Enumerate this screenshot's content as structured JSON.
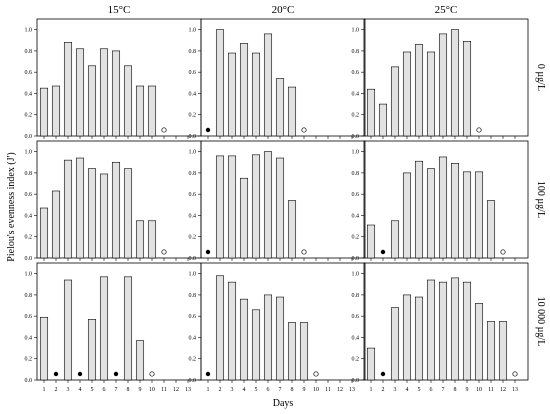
{
  "chart_data": {
    "type": "bar",
    "xlabel": "Days",
    "ylabel": "Pielou's evenness index (J')",
    "ylim": [
      0,
      1.1
    ],
    "yticks": [
      "0.0",
      "0.2",
      "0.4",
      "0.6",
      "0.8",
      "1.0"
    ],
    "xticks": [
      "1",
      "2",
      "3",
      "4",
      "5",
      "6",
      "7",
      "8",
      "9",
      "10",
      "11",
      "12",
      "13"
    ],
    "columns": [
      "15°C",
      "20°C",
      "25°C"
    ],
    "rows": [
      "0 µg/L",
      "100 µg/L",
      "10 000 µg/L"
    ],
    "colors": {
      "bar_fill": "#e2e2e2",
      "bar_edge": "#000000",
      "filled_dot": "#000000",
      "open_dot": "#ffffff"
    },
    "marker_legend": {
      "filled": "value of 0 (single taxon)",
      "open": "no data / end of experiment"
    },
    "panels": [
      {
        "column": "15°C",
        "row": "0 µg/L",
        "days": [
          1,
          2,
          3,
          4,
          5,
          6,
          7,
          8,
          9,
          10
        ],
        "values": [
          0.45,
          0.47,
          0.88,
          0.82,
          0.66,
          0.82,
          0.8,
          0.66,
          0.47,
          0.47
        ],
        "filled_markers": [],
        "open_markers": [
          11
        ]
      },
      {
        "column": "20°C",
        "row": "0 µg/L",
        "days": [
          2,
          3,
          4,
          5,
          6,
          7,
          8
        ],
        "values": [
          1.0,
          0.78,
          0.87,
          0.78,
          0.96,
          0.54,
          0.46
        ],
        "filled_markers": [
          1
        ],
        "open_markers": [
          9
        ]
      },
      {
        "column": "25°C",
        "row": "0 µg/L",
        "days": [
          1,
          2,
          3,
          4,
          5,
          6,
          7,
          8,
          9
        ],
        "values": [
          0.44,
          0.3,
          0.65,
          0.79,
          0.86,
          0.79,
          0.96,
          1.0,
          0.89
        ],
        "filled_markers": [],
        "open_markers": [
          10
        ]
      },
      {
        "column": "15°C",
        "row": "100 µg/L",
        "days": [
          1,
          2,
          3,
          4,
          5,
          6,
          7,
          8,
          9,
          10
        ],
        "values": [
          0.47,
          0.63,
          0.92,
          0.94,
          0.84,
          0.79,
          0.9,
          0.84,
          0.35,
          0.35
        ],
        "filled_markers": [],
        "open_markers": [
          11
        ]
      },
      {
        "column": "20°C",
        "row": "100 µg/L",
        "days": [
          2,
          3,
          4,
          5,
          6,
          7,
          8
        ],
        "values": [
          0.96,
          0.96,
          0.75,
          0.97,
          1.0,
          0.94,
          0.54
        ],
        "filled_markers": [
          1
        ],
        "open_markers": [
          9
        ]
      },
      {
        "column": "25°C",
        "row": "100 µg/L",
        "days": [
          1,
          3,
          4,
          5,
          6,
          7,
          8,
          9,
          10,
          11
        ],
        "values": [
          0.31,
          0.35,
          0.8,
          0.91,
          0.84,
          0.95,
          0.89,
          0.81,
          0.81,
          0.54
        ],
        "filled_markers": [
          2
        ],
        "open_markers": [
          12
        ]
      },
      {
        "column": "15°C",
        "row": "10 000 µg/L",
        "days": [
          1,
          3,
          5,
          6,
          8,
          9
        ],
        "values": [
          0.59,
          0.94,
          0.57,
          0.97,
          0.97,
          0.37
        ],
        "filled_markers": [
          2,
          4,
          7
        ],
        "open_markers": [
          10
        ]
      },
      {
        "column": "20°C",
        "row": "10 000 µg/L",
        "days": [
          2,
          3,
          4,
          5,
          6,
          7,
          8,
          9
        ],
        "values": [
          0.98,
          0.92,
          0.76,
          0.66,
          0.8,
          0.78,
          0.54,
          0.54
        ],
        "filled_markers": [
          1
        ],
        "open_markers": [
          10
        ]
      },
      {
        "column": "25°C",
        "row": "10 000 µg/L",
        "days": [
          1,
          3,
          4,
          5,
          6,
          7,
          8,
          9,
          10,
          11,
          12
        ],
        "values": [
          0.3,
          0.68,
          0.8,
          0.78,
          0.94,
          0.92,
          0.96,
          0.92,
          0.72,
          0.55,
          0.55
        ],
        "filled_markers": [
          2
        ],
        "open_markers": [
          13
        ]
      }
    ]
  }
}
